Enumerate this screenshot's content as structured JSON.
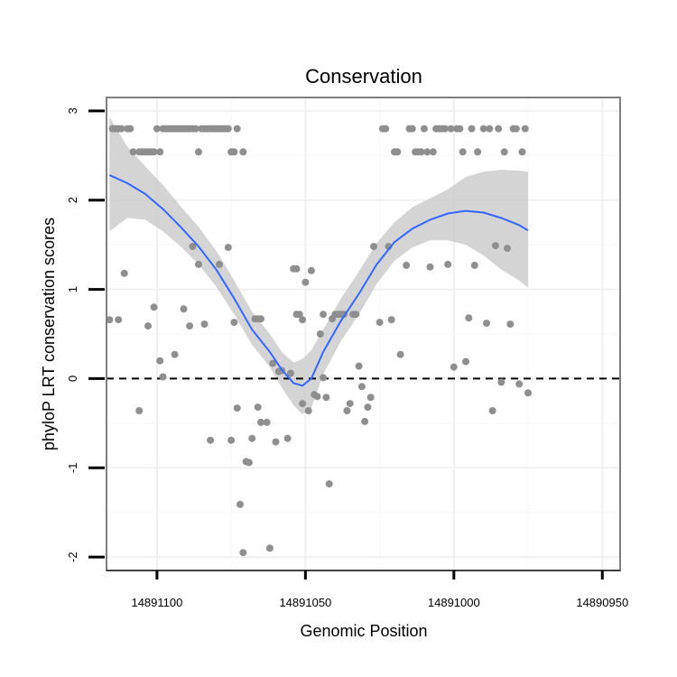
{
  "chart_data": {
    "type": "scatter",
    "title": "Conservation",
    "xlabel": "Genomic Position",
    "ylabel": "phyloP LRT conservation scores",
    "xlim": [
      14891117,
      14890944
    ],
    "ylim": [
      -2.15,
      3.15
    ],
    "xticks": [
      14891100,
      14891050,
      14891000,
      14890950
    ],
    "xtick_labels": [
      "14891100",
      "14891050",
      "14891000",
      "14890950"
    ],
    "yticks": [
      -2,
      -1,
      0,
      1,
      2,
      3
    ],
    "ytick_labels": [
      "-2",
      "-1",
      "0",
      "1",
      "2",
      "3"
    ],
    "grid": true,
    "reference_line": {
      "y": 0,
      "style": "dashed",
      "color": "#000000"
    },
    "colors": {
      "points": "#8f8f8f",
      "fit": "#3366ff",
      "ribbon": "#cccccc",
      "panel_border": "#7f7f7f"
    },
    "points": [
      {
        "x": 14891115,
        "y": 2.8
      },
      {
        "x": 14891114,
        "y": 2.8
      },
      {
        "x": 14891113,
        "y": 2.8
      },
      {
        "x": 14891112,
        "y": 2.8
      },
      {
        "x": 14891110,
        "y": 2.8
      },
      {
        "x": 14891109,
        "y": 2.8
      },
      {
        "x": 14891108,
        "y": 2.54
      },
      {
        "x": 14891106,
        "y": 2.54
      },
      {
        "x": 14891105,
        "y": 2.54
      },
      {
        "x": 14891104,
        "y": 2.54
      },
      {
        "x": 14891103,
        "y": 2.54
      },
      {
        "x": 14891102,
        "y": 2.54
      },
      {
        "x": 14891101,
        "y": 2.54
      },
      {
        "x": 14891100,
        "y": 2.8
      },
      {
        "x": 14891099,
        "y": 2.54
      },
      {
        "x": 14891098,
        "y": 2.8
      },
      {
        "x": 14891097,
        "y": 2.8
      },
      {
        "x": 14891096,
        "y": 2.8
      },
      {
        "x": 14891095,
        "y": 2.8
      },
      {
        "x": 14891094,
        "y": 2.8
      },
      {
        "x": 14891093,
        "y": 2.8
      },
      {
        "x": 14891092,
        "y": 2.8
      },
      {
        "x": 14891091,
        "y": 2.8
      },
      {
        "x": 14891090,
        "y": 2.8
      },
      {
        "x": 14891089,
        "y": 2.8
      },
      {
        "x": 14891088,
        "y": 2.8
      },
      {
        "x": 14891087,
        "y": 2.8
      },
      {
        "x": 14891086,
        "y": 2.54
      },
      {
        "x": 14891085,
        "y": 2.8
      },
      {
        "x": 14891084,
        "y": 2.8
      },
      {
        "x": 14891083,
        "y": 2.8
      },
      {
        "x": 14891082,
        "y": 2.8
      },
      {
        "x": 14891081,
        "y": 2.8
      },
      {
        "x": 14891080,
        "y": 2.8
      },
      {
        "x": 14891079,
        "y": 2.8
      },
      {
        "x": 14891078,
        "y": 2.8
      },
      {
        "x": 14891077,
        "y": 2.8
      },
      {
        "x": 14891076,
        "y": 2.8
      },
      {
        "x": 14891075,
        "y": 2.54
      },
      {
        "x": 14891074,
        "y": 2.54
      },
      {
        "x": 14891073,
        "y": 2.8
      },
      {
        "x": 14891071,
        "y": 2.54
      },
      {
        "x": 14891116,
        "y": 0.66
      },
      {
        "x": 14891113,
        "y": 0.66
      },
      {
        "x": 14891111,
        "y": 1.18
      },
      {
        "x": 14891106,
        "y": -0.36
      },
      {
        "x": 14891103,
        "y": 0.59
      },
      {
        "x": 14891101,
        "y": 0.8
      },
      {
        "x": 14891099,
        "y": 0.2
      },
      {
        "x": 14891098,
        "y": 0.02
      },
      {
        "x": 14891094,
        "y": 0.27
      },
      {
        "x": 14891091,
        "y": 0.78
      },
      {
        "x": 14891089,
        "y": 0.59
      },
      {
        "x": 14891088,
        "y": 1.48
      },
      {
        "x": 14891086,
        "y": 1.28
      },
      {
        "x": 14891084,
        "y": 0.61
      },
      {
        "x": 14891082,
        "y": -0.69
      },
      {
        "x": 14891079,
        "y": 1.28
      },
      {
        "x": 14891076,
        "y": 1.47
      },
      {
        "x": 14891075,
        "y": -0.69
      },
      {
        "x": 14891074,
        "y": 0.63
      },
      {
        "x": 14891073,
        "y": -0.33
      },
      {
        "x": 14891072,
        "y": -1.41
      },
      {
        "x": 14891071,
        "y": -1.95
      },
      {
        "x": 14891070,
        "y": -0.93
      },
      {
        "x": 14891069,
        "y": -0.94
      },
      {
        "x": 14891068,
        "y": -0.67
      },
      {
        "x": 14891067,
        "y": 0.67
      },
      {
        "x": 14891066,
        "y": 0.67
      },
      {
        "x": 14891066,
        "y": -0.32
      },
      {
        "x": 14891065,
        "y": 0.67
      },
      {
        "x": 14891065,
        "y": -0.49
      },
      {
        "x": 14891063,
        "y": -0.49
      },
      {
        "x": 14891062,
        "y": -1.9
      },
      {
        "x": 14891061,
        "y": 0.17
      },
      {
        "x": 14891060,
        "y": -0.71
      },
      {
        "x": 14891059,
        "y": 0.08
      },
      {
        "x": 14891058,
        "y": 0.09
      },
      {
        "x": 14891056,
        "y": -0.67
      },
      {
        "x": 14891055,
        "y": 0.06
      },
      {
        "x": 14891054,
        "y": 1.23
      },
      {
        "x": 14891053,
        "y": 1.23
      },
      {
        "x": 14891053,
        "y": 0.72
      },
      {
        "x": 14891052,
        "y": 0.72
      },
      {
        "x": 14891051,
        "y": 0.66
      },
      {
        "x": 14891051,
        "y": -0.28
      },
      {
        "x": 14891050,
        "y": 1.08
      },
      {
        "x": 14891049,
        "y": -0.36
      },
      {
        "x": 14891048,
        "y": 1.21
      },
      {
        "x": 14891047,
        "y": -0.18
      },
      {
        "x": 14891046,
        "y": -0.2
      },
      {
        "x": 14891045,
        "y": 0.5
      },
      {
        "x": 14891044,
        "y": 0.72
      },
      {
        "x": 14891044,
        "y": 0.01
      },
      {
        "x": 14891043,
        "y": -0.21
      },
      {
        "x": 14891042,
        "y": -1.18
      },
      {
        "x": 14891041,
        "y": 0.67
      },
      {
        "x": 14891040,
        "y": 0.72
      },
      {
        "x": 14891039,
        "y": 0.72
      },
      {
        "x": 14891038,
        "y": 0.72
      },
      {
        "x": 14891037,
        "y": 0.72
      },
      {
        "x": 14891036,
        "y": -0.36
      },
      {
        "x": 14891035,
        "y": -0.28
      },
      {
        "x": 14891034,
        "y": 0.72
      },
      {
        "x": 14891033,
        "y": 0.72
      },
      {
        "x": 14891032,
        "y": 0.14
      },
      {
        "x": 14891031,
        "y": -0.09
      },
      {
        "x": 14891030,
        "y": -0.48
      },
      {
        "x": 14891029,
        "y": -0.32
      },
      {
        "x": 14891028,
        "y": -0.21
      },
      {
        "x": 14891027,
        "y": 1.48
      },
      {
        "x": 14891025,
        "y": 0.63
      },
      {
        "x": 14891024,
        "y": 2.8
      },
      {
        "x": 14891023,
        "y": 2.8
      },
      {
        "x": 14891022,
        "y": 1.48
      },
      {
        "x": 14891021,
        "y": 0.66
      },
      {
        "x": 14891020,
        "y": 2.54
      },
      {
        "x": 14891019,
        "y": 2.54
      },
      {
        "x": 14891018,
        "y": 0.27
      },
      {
        "x": 14891016,
        "y": 1.27
      },
      {
        "x": 14891015,
        "y": 2.8
      },
      {
        "x": 14891014,
        "y": 2.8
      },
      {
        "x": 14891013,
        "y": 2.54
      },
      {
        "x": 14891012,
        "y": 2.54
      },
      {
        "x": 14891011,
        "y": 2.54
      },
      {
        "x": 14891010,
        "y": 2.8
      },
      {
        "x": 14891009,
        "y": 2.54
      },
      {
        "x": 14891008,
        "y": 1.25
      },
      {
        "x": 14891007,
        "y": 2.54
      },
      {
        "x": 14891006,
        "y": 2.8
      },
      {
        "x": 14891005,
        "y": 2.8
      },
      {
        "x": 14891004,
        "y": 2.8
      },
      {
        "x": 14891003,
        "y": 2.8
      },
      {
        "x": 14891002,
        "y": 1.28
      },
      {
        "x": 14891001,
        "y": 2.8
      },
      {
        "x": 14891000,
        "y": 0.13
      },
      {
        "x": 14890999,
        "y": 2.8
      },
      {
        "x": 14890998,
        "y": 2.8
      },
      {
        "x": 14890997,
        "y": 2.54
      },
      {
        "x": 14890996,
        "y": 0.19
      },
      {
        "x": 14890995,
        "y": 0.68
      },
      {
        "x": 14890994,
        "y": 2.8
      },
      {
        "x": 14890993,
        "y": 1.27
      },
      {
        "x": 14890992,
        "y": 2.54
      },
      {
        "x": 14890990,
        "y": 2.8
      },
      {
        "x": 14890989,
        "y": 0.62
      },
      {
        "x": 14890988,
        "y": 2.8
      },
      {
        "x": 14890987,
        "y": -0.36
      },
      {
        "x": 14890986,
        "y": 1.49
      },
      {
        "x": 14890985,
        "y": 2.8
      },
      {
        "x": 14890984,
        "y": -0.04
      },
      {
        "x": 14890983,
        "y": 2.54
      },
      {
        "x": 14890982,
        "y": 1.46
      },
      {
        "x": 14890981,
        "y": 0.61
      },
      {
        "x": 14890980,
        "y": 2.8
      },
      {
        "x": 14890979,
        "y": 2.8
      },
      {
        "x": 14890978,
        "y": -0.06
      },
      {
        "x": 14890977,
        "y": 2.54
      },
      {
        "x": 14890976,
        "y": 2.8
      },
      {
        "x": 14890975,
        "y": -0.16
      }
    ],
    "fit": {
      "x": [
        14891116,
        14891110,
        14891104,
        14891098,
        14891092,
        14891086,
        14891080,
        14891074,
        14891068,
        14891062,
        14891058,
        14891054,
        14891051,
        14891048,
        14891044,
        14891038,
        14891032,
        14891026,
        14891020,
        14891014,
        14891008,
        14891002,
        14890996,
        14890990,
        14890984,
        14890978,
        14890975
      ],
      "y": [
        2.28,
        2.19,
        2.07,
        1.9,
        1.7,
        1.48,
        1.22,
        0.9,
        0.55,
        0.3,
        0.1,
        -0.05,
        -0.08,
        0.0,
        0.3,
        0.65,
        0.95,
        1.28,
        1.53,
        1.68,
        1.78,
        1.85,
        1.88,
        1.86,
        1.8,
        1.72,
        1.66
      ],
      "lo": [
        1.65,
        1.8,
        1.78,
        1.65,
        1.48,
        1.28,
        1.03,
        0.72,
        0.38,
        0.13,
        -0.1,
        -0.3,
        -0.4,
        -0.33,
        0.05,
        0.42,
        0.72,
        1.06,
        1.32,
        1.47,
        1.55,
        1.55,
        1.5,
        1.38,
        1.22,
        1.1,
        1.02
      ],
      "hi": [
        2.93,
        2.6,
        2.38,
        2.17,
        1.93,
        1.7,
        1.43,
        1.1,
        0.75,
        0.5,
        0.3,
        0.18,
        0.22,
        0.32,
        0.55,
        0.9,
        1.2,
        1.52,
        1.75,
        1.92,
        2.02,
        2.12,
        2.26,
        2.32,
        2.34,
        2.33,
        2.32
      ]
    }
  }
}
